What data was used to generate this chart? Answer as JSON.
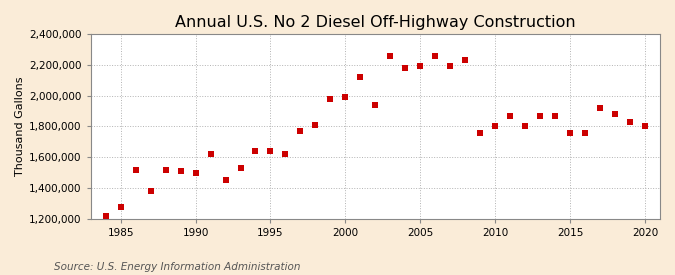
{
  "title": "Annual U.S. No 2 Diesel Off-Highway Construction",
  "ylabel": "Thousand Gallons",
  "source": "Source: U.S. Energy Information Administration",
  "years": [
    1984,
    1985,
    1986,
    1987,
    1988,
    1989,
    1990,
    1991,
    1992,
    1993,
    1994,
    1995,
    1996,
    1997,
    1998,
    1999,
    2000,
    2001,
    2002,
    2003,
    2004,
    2005,
    2006,
    2007,
    2008,
    2009,
    2010,
    2011,
    2012,
    2013,
    2014,
    2015,
    2016,
    2017,
    2018,
    2019,
    2020
  ],
  "values": [
    1220000,
    1275000,
    1520000,
    1380000,
    1520000,
    1510000,
    1500000,
    1620000,
    1450000,
    1530000,
    1640000,
    1640000,
    1620000,
    1770000,
    1810000,
    1980000,
    1990000,
    2120000,
    1940000,
    2260000,
    2180000,
    2190000,
    2260000,
    2190000,
    2230000,
    1760000,
    1800000,
    1870000,
    1800000,
    1870000,
    1870000,
    1760000,
    1760000,
    1920000,
    1880000,
    1830000,
    1800000
  ],
  "marker_color": "#cc0000",
  "marker": "s",
  "marker_size": 4,
  "fig_bg_color": "#faecd8",
  "plot_bg_color": "#ffffff",
  "grid_color": "#aaaaaa",
  "xlim": [
    1983,
    2021
  ],
  "ylim": [
    1200000,
    2400000
  ],
  "yticks": [
    1200000,
    1400000,
    1600000,
    1800000,
    2000000,
    2200000,
    2400000
  ],
  "xticks": [
    1985,
    1990,
    1995,
    2000,
    2005,
    2010,
    2015,
    2020
  ],
  "title_fontsize": 11.5,
  "label_fontsize": 8,
  "tick_fontsize": 7.5,
  "source_fontsize": 7.5
}
